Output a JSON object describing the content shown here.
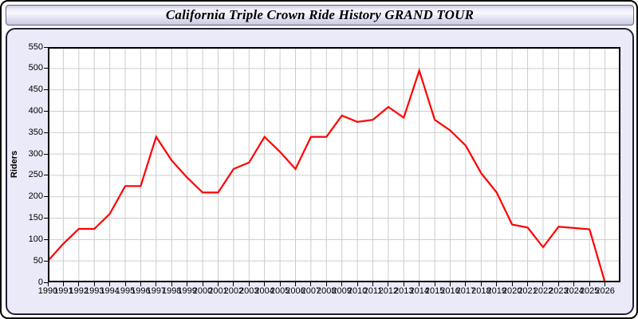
{
  "window": {
    "title": "California Triple Crown Ride History GRAND TOUR"
  },
  "colors": {
    "line": "#ff0000",
    "panel_background": "#eaeaf8",
    "plot_background": "#ffffff",
    "gridline": "#cccccc",
    "axis": "#000000",
    "title_text": "#000000"
  },
  "chart_data": {
    "type": "line",
    "title": "California Triple Crown Ride History GRAND TOUR",
    "xlabel": "",
    "ylabel": "Riders",
    "ylim": [
      0,
      550
    ],
    "xlim": [
      1990,
      2027
    ],
    "grid": true,
    "legend_position": "none",
    "y_ticks": [
      0,
      50,
      100,
      150,
      200,
      250,
      300,
      350,
      400,
      450,
      500,
      550
    ],
    "categories": [
      "1990",
      "1991",
      "1992",
      "1993",
      "1994",
      "1995",
      "1996",
      "1997",
      "1998",
      "1999",
      "2000",
      "2001",
      "2002",
      "2003",
      "2004",
      "2005",
      "2006",
      "2007",
      "2008",
      "2009",
      "2010",
      "2011",
      "2012",
      "2013",
      "2014",
      "2015",
      "2016",
      "2017",
      "2018",
      "2019",
      "2020",
      "2021",
      "2022",
      "2023",
      "2024",
      "2025",
      "2026"
    ],
    "series": [
      {
        "name": "Riders",
        "color": "#ff0000",
        "values": [
          50,
          90,
          125,
          125,
          160,
          225,
          225,
          340,
          285,
          245,
          210,
          210,
          265,
          280,
          340,
          305,
          265,
          340,
          340,
          390,
          375,
          380,
          410,
          385,
          495,
          380,
          355,
          320,
          255,
          210,
          135,
          128,
          82,
          130,
          127,
          124,
          0
        ]
      }
    ]
  }
}
